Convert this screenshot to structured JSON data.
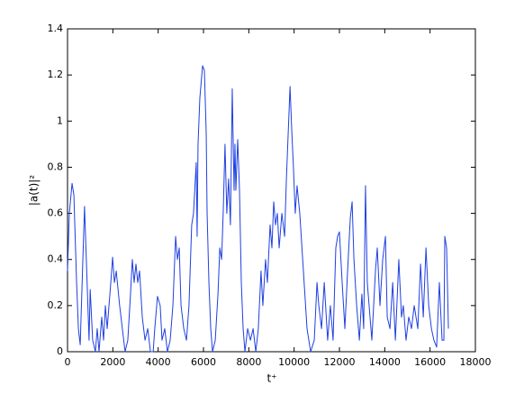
{
  "chart_data": {
    "type": "line",
    "x_label": "t⁺",
    "y_label": "|a(t)|²",
    "x": [
      0,
      80,
      200,
      280,
      400,
      480,
      560,
      750,
      950,
      1000,
      1110,
      1230,
      1310,
      1390,
      1510,
      1590,
      1670,
      1750,
      1910,
      1990,
      2070,
      2150,
      2300,
      2420,
      2540,
      2660,
      2780,
      2860,
      2940,
      3020,
      3100,
      3180,
      3300,
      3420,
      3540,
      3660,
      3780,
      3850,
      3970,
      4090,
      4170,
      4290,
      4410,
      4530,
      4650,
      4770,
      4850,
      4930,
      5010,
      5130,
      5250,
      5360,
      5480,
      5560,
      5680,
      5720,
      5760,
      5840,
      5960,
      6040,
      6120,
      6160,
      6240,
      6320,
      6400,
      6520,
      6640,
      6720,
      6800,
      6870,
      6950,
      7030,
      7110,
      7190,
      7270,
      7350,
      7390,
      7430,
      7510,
      7590,
      7670,
      7750,
      7830,
      7950,
      8070,
      8190,
      8310,
      8420,
      8540,
      8620,
      8740,
      8820,
      8940,
      9020,
      9100,
      9180,
      9260,
      9340,
      9460,
      9580,
      9660,
      9740,
      9820,
      9900,
      9970,
      10050,
      10130,
      10250,
      10410,
      10570,
      10730,
      10890,
      11010,
      11090,
      11210,
      11330,
      11480,
      11600,
      11720,
      11840,
      11920,
      12000,
      12120,
      12240,
      12360,
      12480,
      12560,
      12640,
      12760,
      12880,
      12990,
      13070,
      13150,
      13230,
      13350,
      13430,
      13590,
      13670,
      13790,
      13910,
      14030,
      14110,
      14230,
      14350,
      14470,
      14620,
      14740,
      14820,
      14940,
      15060,
      15180,
      15300,
      15460,
      15580,
      15700,
      15820,
      15940,
      16060,
      16170,
      16290,
      16410,
      16530,
      16610,
      16650,
      16730,
      16810
    ],
    "series": [
      {
        "color": "#1f3fe0",
        "values": [
          0.35,
          0.6,
          0.73,
          0.68,
          0.3,
          0.1,
          0.03,
          0.63,
          0.05,
          0.27,
          0.05,
          0,
          0.1,
          0,
          0.15,
          0.05,
          0.2,
          0.1,
          0.3,
          0.41,
          0.3,
          0.35,
          0.2,
          0.1,
          0,
          0.05,
          0.25,
          0.4,
          0.3,
          0.38,
          0.3,
          0.35,
          0.15,
          0.05,
          0.1,
          0,
          0,
          0.1,
          0.24,
          0.2,
          0.05,
          0.1,
          0,
          0.05,
          0.2,
          0.5,
          0.4,
          0.45,
          0.2,
          0.1,
          0.05,
          0.2,
          0.55,
          0.6,
          0.82,
          0.5,
          0.9,
          1.1,
          1.24,
          1.22,
          0.95,
          0.6,
          0.3,
          0.1,
          0,
          0.05,
          0.25,
          0.45,
          0.4,
          0.6,
          0.9,
          0.6,
          0.75,
          0.55,
          1.14,
          0.7,
          0.9,
          0.7,
          0.92,
          0.7,
          0.3,
          0.1,
          0,
          0.1,
          0.05,
          0.1,
          0,
          0.1,
          0.35,
          0.2,
          0.4,
          0.3,
          0.55,
          0.45,
          0.65,
          0.55,
          0.6,
          0.45,
          0.6,
          0.5,
          0.75,
          0.95,
          1.15,
          0.95,
          0.8,
          0.6,
          0.72,
          0.6,
          0.35,
          0.1,
          0,
          0.05,
          0.3,
          0.2,
          0.1,
          0.3,
          0.05,
          0.2,
          0.05,
          0.45,
          0.5,
          0.52,
          0.3,
          0.1,
          0.35,
          0.58,
          0.65,
          0.4,
          0.2,
          0.05,
          0.25,
          0.1,
          0.72,
          0.3,
          0.15,
          0.05,
          0.35,
          0.45,
          0.2,
          0.4,
          0.5,
          0.15,
          0.1,
          0.3,
          0.05,
          0.4,
          0.15,
          0.2,
          0.05,
          0.15,
          0.1,
          0.2,
          0.1,
          0.38,
          0.15,
          0.45,
          0.2,
          0.1,
          0.05,
          0.02,
          0.3,
          0.05,
          0.05,
          0.5,
          0.45,
          0.1
        ]
      }
    ],
    "xlim": [
      0,
      18000
    ],
    "xticks": [
      0,
      2000,
      4000,
      6000,
      8000,
      10000,
      12000,
      14000,
      16000,
      18000
    ],
    "ylim": [
      0,
      1.4
    ],
    "yticks": [
      0,
      0.2,
      0.4,
      0.6,
      0.8,
      1,
      1.2,
      1.4
    ],
    "grid": false
  }
}
